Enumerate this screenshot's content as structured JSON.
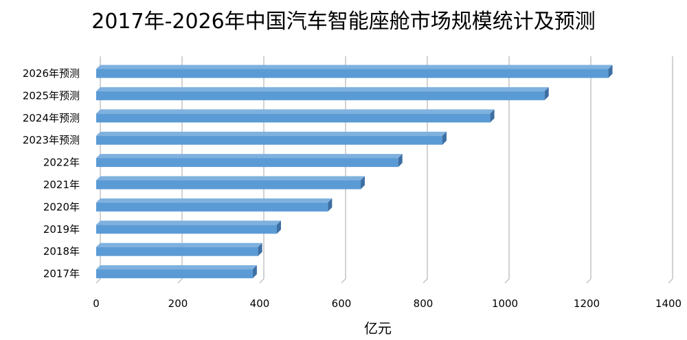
{
  "chart_data": {
    "type": "bar",
    "orientation": "horizontal",
    "title": "2017年-2026年中国汽车智能座舱市场规模统计及预测",
    "xlabel": "亿元",
    "ylabel": "",
    "xlim": [
      0,
      1400
    ],
    "xticks": [
      0,
      200,
      400,
      600,
      800,
      1000,
      1200,
      1400
    ],
    "grid": true,
    "legend": "none",
    "bar_color": "#5b9bd5",
    "categories": [
      "2017年",
      "2018年",
      "2019年",
      "2020年",
      "2021年",
      "2022年",
      "2023年预测",
      "2024年预测",
      "2025年预测",
      "2026年预测"
    ],
    "values": [
      383,
      396,
      442,
      567,
      647,
      739,
      847,
      964,
      1097,
      1253
    ]
  }
}
